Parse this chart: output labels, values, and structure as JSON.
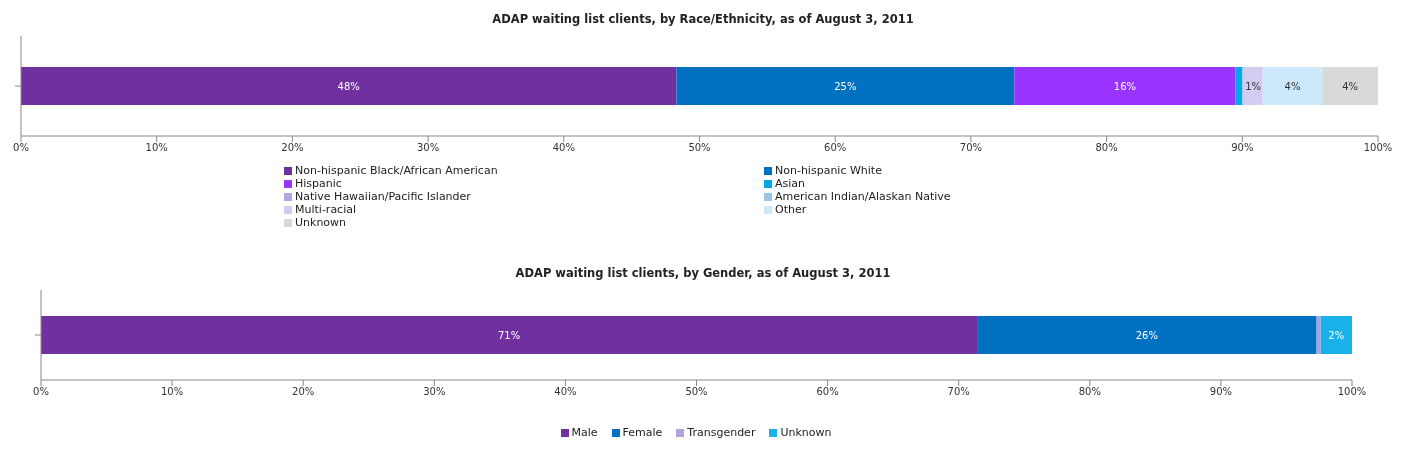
{
  "chart_data": [
    {
      "type": "bar",
      "orientation": "horizontal",
      "stacked": true,
      "title": "ADAP waiting list clients, by Race/Ethnicity, as of August 3, 2011",
      "categories": [
        null
      ],
      "xlim": [
        0,
        100
      ],
      "xticks": [
        {
          "value": 0,
          "label": "0%"
        },
        {
          "value": 10,
          "label": "10%"
        },
        {
          "value": 20,
          "label": "20%"
        },
        {
          "value": 30,
          "label": "30%"
        },
        {
          "value": 40,
          "label": "40%"
        },
        {
          "value": 50,
          "label": "50%"
        },
        {
          "value": 60,
          "label": "60%"
        },
        {
          "value": 70,
          "label": "70%"
        },
        {
          "value": 80,
          "label": "80%"
        },
        {
          "value": 90,
          "label": "90%"
        },
        {
          "value": 100,
          "label": "100%"
        }
      ],
      "tick_labels": "x",
      "legend": "bottom",
      "series": [
        {
          "name": "Non-hispanic Black/African American",
          "color": "#7030a0",
          "values": [
            48.3
          ],
          "value_labels": [
            "48%"
          ]
        },
        {
          "name": "Non-hispanic White",
          "color": "#0070c0",
          "values": [
            24.9
          ],
          "value_labels": [
            "25%"
          ]
        },
        {
          "name": "Hispanic",
          "color": "#9933ff",
          "values": [
            16.3
          ],
          "value_labels": [
            "16%"
          ]
        },
        {
          "name": "Asian",
          "color": "#00a8e8",
          "values": [
            0.5
          ],
          "value_labels": [
            null
          ]
        },
        {
          "name": "Native Hawaiian/Pacific Islander",
          "color": "#b4a7e6",
          "values": [
            null
          ],
          "value_labels": [
            null
          ]
        },
        {
          "name": "American Indian/Alaskan Native",
          "color": "#9dc3e6",
          "values": [
            0.1
          ],
          "value_labels": [
            null
          ]
        },
        {
          "name": "Multi-racial",
          "color": "#d4ccf0",
          "values": [
            1.4
          ],
          "value_labels": [
            "1%"
          ]
        },
        {
          "name": "Other",
          "color": "#cce8fa",
          "values": [
            4.4
          ],
          "value_labels": [
            "4%"
          ]
        },
        {
          "name": "Unknown",
          "color": "#d9d9d9",
          "values": [
            4.1
          ],
          "value_labels": [
            "4%"
          ]
        }
      ]
    },
    {
      "type": "bar",
      "orientation": "horizontal",
      "stacked": true,
      "title": "ADAP waiting list clients, by Gender, as of August 3, 2011",
      "categories": [
        null
      ],
      "xlim": [
        0,
        100
      ],
      "xticks": [
        {
          "value": 0,
          "label": "0%"
        },
        {
          "value": 10,
          "label": "10%"
        },
        {
          "value": 20,
          "label": "20%"
        },
        {
          "value": 30,
          "label": "30%"
        },
        {
          "value": 40,
          "label": "40%"
        },
        {
          "value": 50,
          "label": "50%"
        },
        {
          "value": 60,
          "label": "60%"
        },
        {
          "value": 70,
          "label": "70%"
        },
        {
          "value": 80,
          "label": "80%"
        },
        {
          "value": 90,
          "label": "90%"
        },
        {
          "value": 100,
          "label": "100%"
        }
      ],
      "tick_labels": "x",
      "legend": "bottom",
      "series": [
        {
          "name": "Male",
          "color": "#7030a0",
          "values": [
            71.4
          ],
          "value_labels": [
            "71%"
          ]
        },
        {
          "name": "Female",
          "color": "#0070c0",
          "values": [
            25.9
          ],
          "value_labels": [
            "26%"
          ]
        },
        {
          "name": "Transgender",
          "color": "#b4a0e0",
          "values": [
            0.3
          ],
          "value_labels": [
            null
          ]
        },
        {
          "name": "Unknown",
          "color": "#1ab0e8",
          "values": [
            2.4
          ],
          "value_labels": [
            "2%"
          ]
        }
      ]
    }
  ]
}
